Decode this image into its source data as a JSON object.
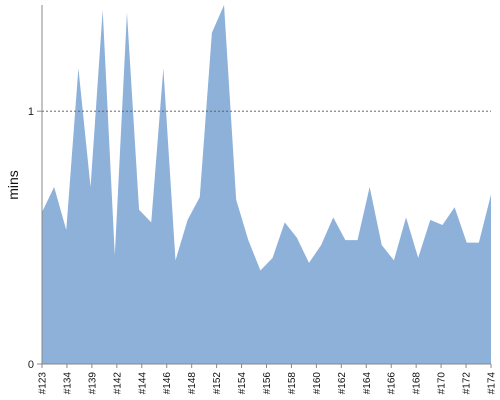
{
  "chart_data": {
    "type": "area",
    "title": "",
    "xlabel": "",
    "ylabel": "mins",
    "ylim": [
      0,
      1.42
    ],
    "y_ticks": [
      {
        "value": 0,
        "label": "0"
      },
      {
        "value": 1,
        "label": "1"
      }
    ],
    "reference_line": {
      "value": 1,
      "style": "dotted"
    },
    "x_tick_labels": [
      "#123",
      "#134",
      "#139",
      "#142",
      "#144",
      "#146",
      "#148",
      "#152",
      "#154",
      "#156",
      "#158",
      "#160",
      "#162",
      "#164",
      "#166",
      "#168",
      "#170",
      "#172",
      "#174"
    ],
    "fill_color": "#8eb1da",
    "series": [
      {
        "values": [
          0.6,
          0.7,
          0.53,
          1.17,
          0.7,
          1.4,
          0.43,
          1.39,
          0.61,
          0.56,
          1.17,
          0.41,
          0.57,
          0.66,
          1.31,
          1.42,
          0.65,
          0.49,
          0.37,
          0.42,
          0.56,
          0.5,
          0.4,
          0.47,
          0.58,
          0.49,
          0.49,
          0.7,
          0.47,
          0.41,
          0.58,
          0.42,
          0.57,
          0.55,
          0.62,
          0.48,
          0.48,
          0.67
        ]
      }
    ]
  }
}
